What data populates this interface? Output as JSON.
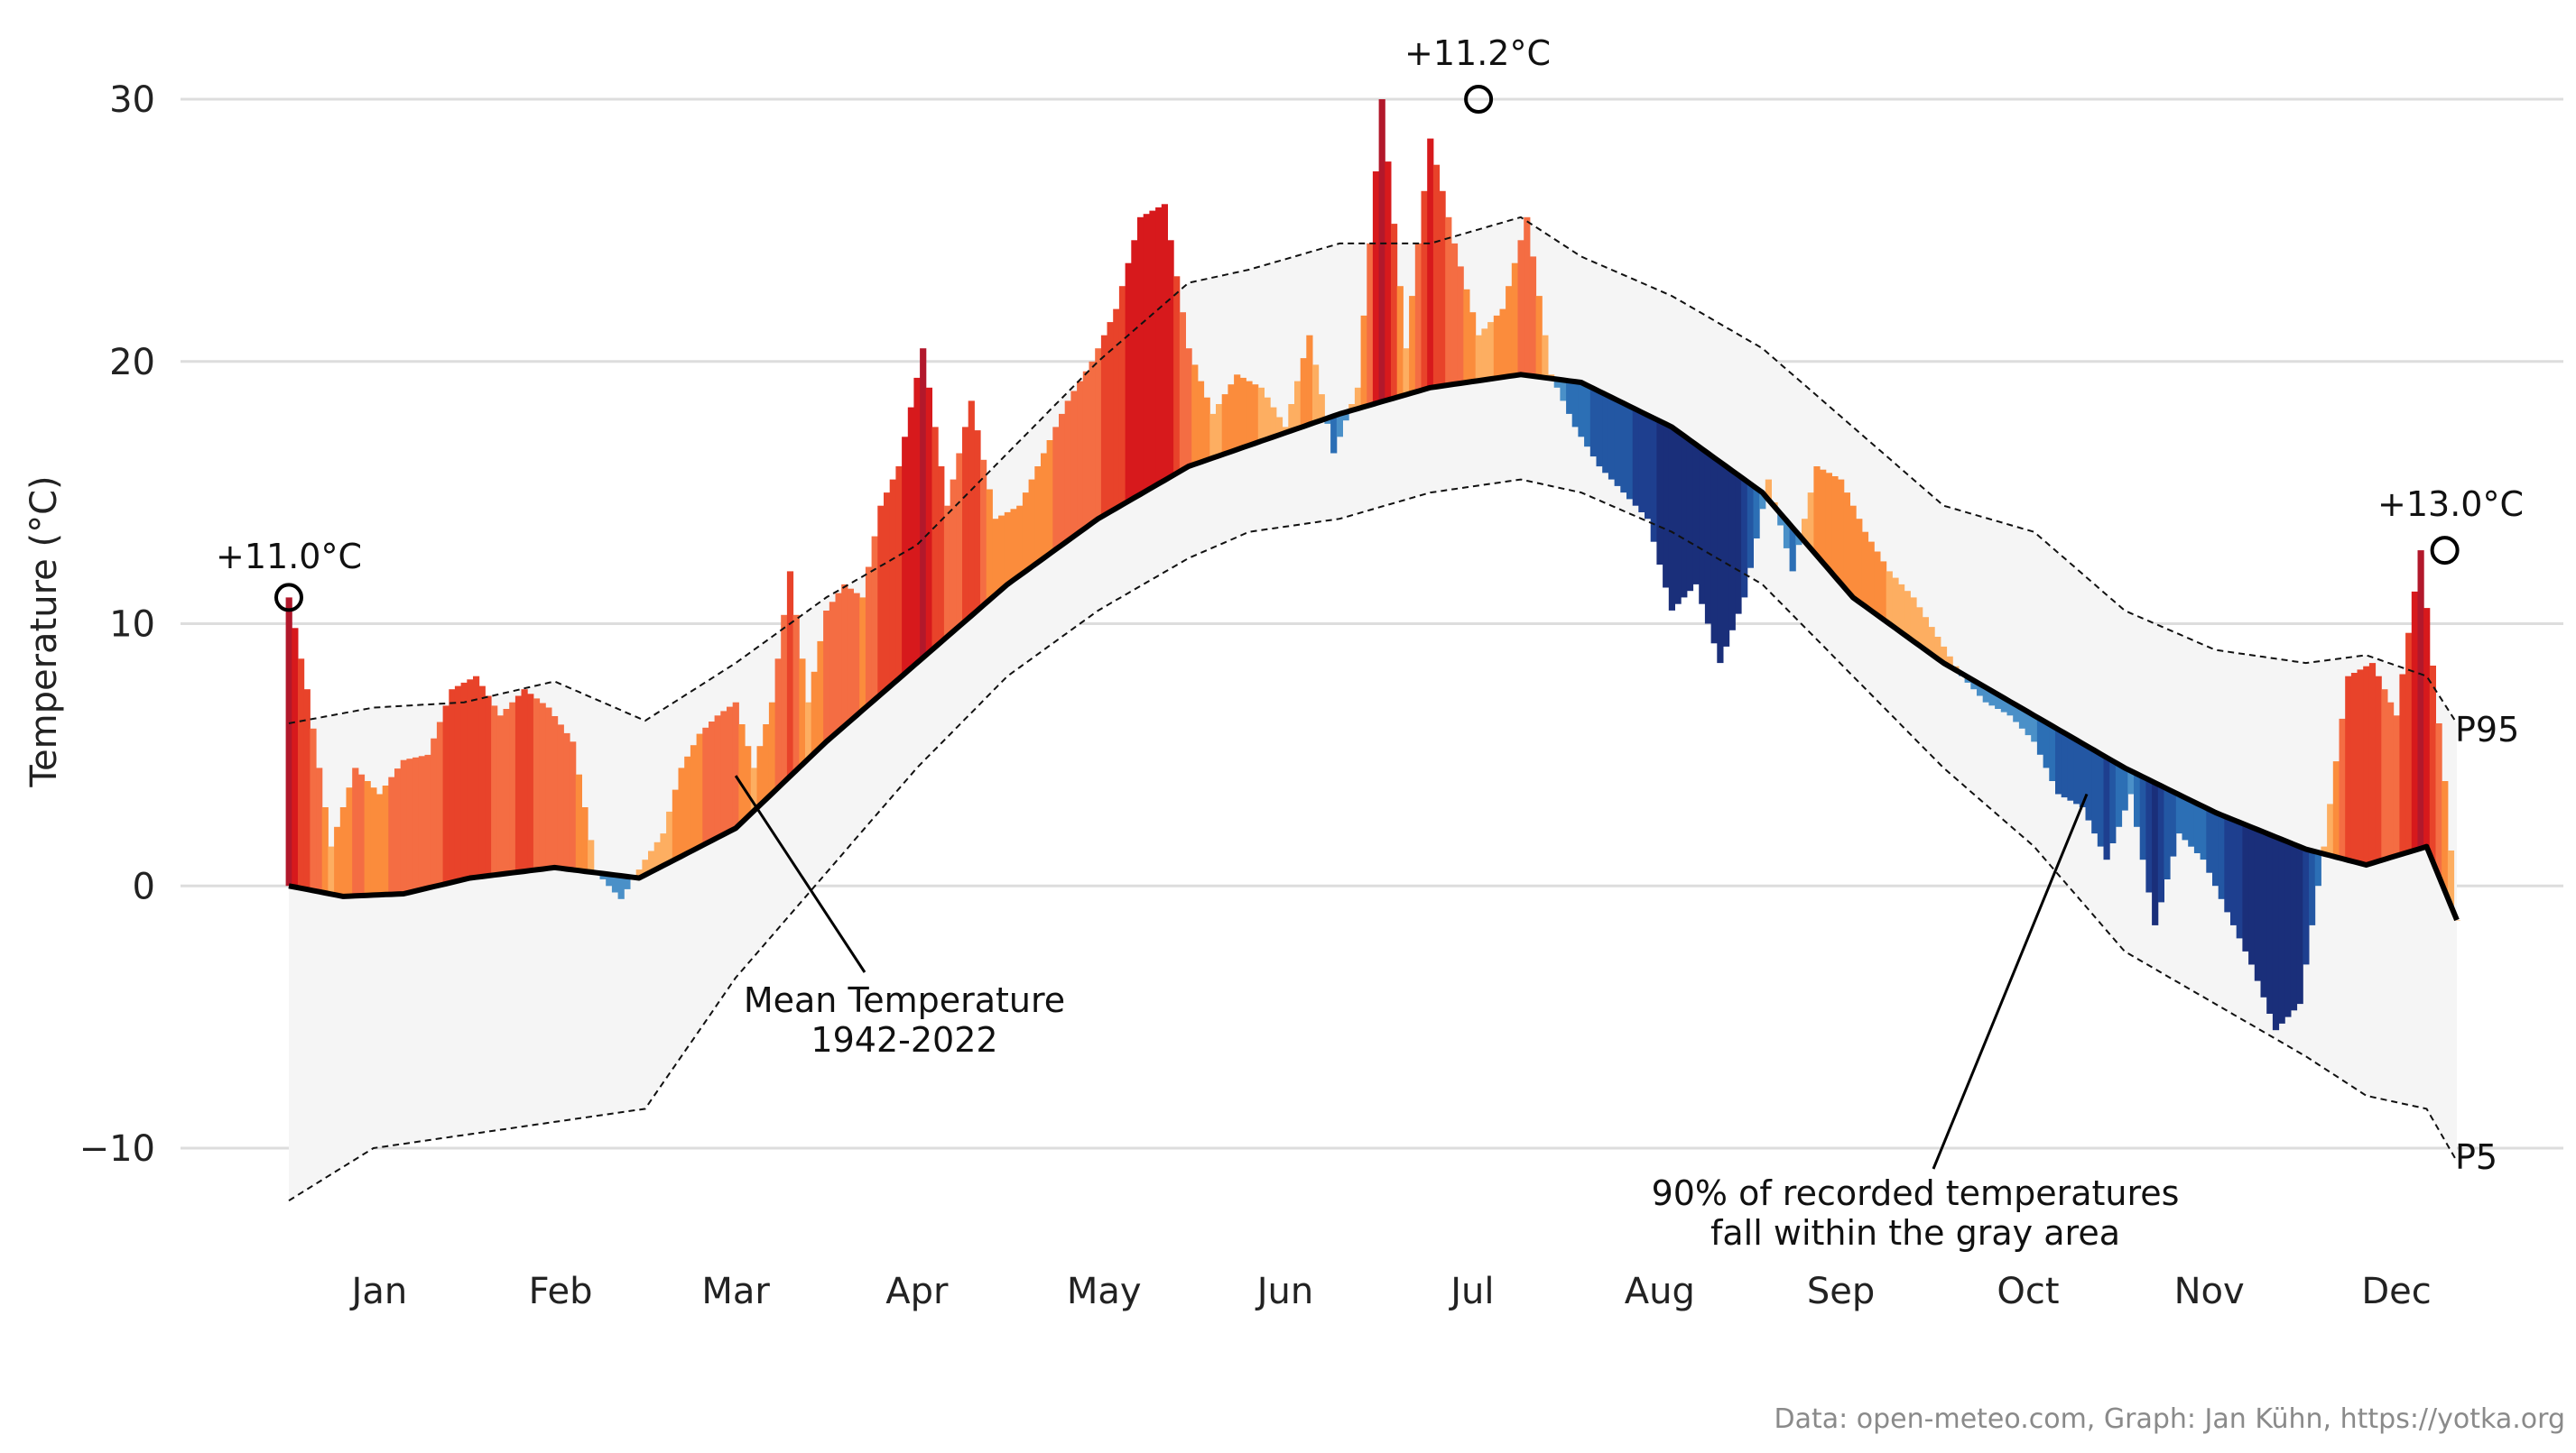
{
  "chart_data": {
    "type": "area",
    "title": "",
    "xlabel": "",
    "ylabel": "Temperature (°C)",
    "ylim": [
      -13,
      32
    ],
    "yticks": [
      30,
      20,
      10,
      0,
      -10
    ],
    "ytick_labels": [
      "30",
      "20",
      "10",
      "0",
      "−10"
    ],
    "grid": true,
    "month_labels": [
      "Jan",
      "Feb",
      "Mar",
      "Apr",
      "May",
      "Jun",
      "Jul",
      "Aug",
      "Sep",
      "Oct",
      "Nov",
      "Dec"
    ],
    "mean_temperature": {
      "x": [
        1,
        10,
        20,
        31,
        45,
        59,
        75,
        90,
        105,
        120,
        135,
        150,
        160,
        175,
        190,
        205,
        215,
        230,
        245,
        260,
        275,
        290,
        305,
        320,
        335,
        345,
        355,
        360
      ],
      "y": [
        0.0,
        -0.4,
        -0.3,
        0.3,
        0.7,
        0.3,
        2.2,
        5.5,
        8.5,
        11.5,
        14.0,
        16.0,
        16.8,
        18.0,
        19.0,
        19.5,
        19.2,
        17.5,
        15.0,
        11.0,
        8.5,
        6.5,
        4.5,
        2.8,
        1.4,
        0.8,
        1.5,
        -1.3
      ]
    },
    "percentile_95": {
      "label": "P95",
      "x": [
        1,
        15,
        30,
        45,
        60,
        75,
        90,
        105,
        120,
        135,
        150,
        160,
        175,
        190,
        205,
        215,
        230,
        245,
        260,
        275,
        290,
        305,
        320,
        335,
        345,
        355,
        360
      ],
      "y": [
        6.2,
        6.8,
        7.0,
        7.8,
        6.3,
        8.5,
        11.0,
        13.0,
        16.5,
        20.0,
        23.0,
        23.5,
        24.5,
        24.5,
        25.5,
        24.0,
        22.5,
        20.5,
        17.5,
        14.5,
        13.5,
        10.5,
        9.0,
        8.5,
        8.8,
        8.0,
        6.2
      ]
    },
    "percentile_5": {
      "label": "P5",
      "x": [
        1,
        15,
        30,
        45,
        60,
        75,
        90,
        105,
        120,
        135,
        150,
        160,
        175,
        190,
        205,
        215,
        230,
        245,
        260,
        275,
        290,
        305,
        320,
        335,
        345,
        355,
        360
      ],
      "y": [
        -12.0,
        -10.0,
        -9.5,
        -9.0,
        -8.5,
        -3.5,
        0.5,
        4.5,
        8.0,
        10.5,
        12.5,
        13.5,
        14.0,
        15.0,
        15.5,
        15.0,
        13.5,
        11.5,
        8.0,
        4.5,
        1.5,
        -2.5,
        -4.5,
        -6.5,
        -8.0,
        -8.5,
        -10.5
      ]
    },
    "daily_anomaly": {
      "x": [
        1,
        4,
        8,
        12,
        16,
        20,
        24,
        28,
        32,
        36,
        40,
        44,
        48,
        52,
        56,
        60,
        63,
        66,
        69,
        72,
        75,
        78,
        81,
        84,
        87,
        90,
        93,
        96,
        99,
        102,
        106,
        110,
        114,
        118,
        122,
        126,
        130,
        134,
        138,
        142,
        146,
        150,
        154,
        158,
        162,
        166,
        170,
        174,
        178,
        182,
        186,
        190,
        194,
        198,
        202,
        206,
        210,
        214,
        218,
        222,
        226,
        230,
        234,
        238,
        242,
        246,
        250,
        254,
        258,
        262,
        266,
        270,
        274,
        278,
        282,
        286,
        290,
        294,
        298,
        302,
        306,
        310,
        314,
        318,
        322,
        326,
        330,
        334,
        338,
        342,
        346,
        350,
        354,
        358,
        360
      ],
      "y": [
        11.0,
        7.5,
        1.5,
        4.5,
        3.5,
        4.8,
        5.0,
        7.5,
        8.0,
        6.5,
        7.5,
        6.8,
        5.5,
        0.5,
        -0.5,
        1.0,
        2.0,
        4.5,
        5.8,
        6.5,
        7.0,
        4.5,
        7.0,
        12.0,
        7.0,
        10.5,
        11.5,
        11.0,
        14.5,
        16.0,
        20.5,
        14.5,
        18.5,
        14.0,
        14.5,
        16.5,
        18.5,
        20.0,
        22.0,
        25.5,
        26.0,
        20.5,
        18.0,
        19.5,
        19.0,
        17.5,
        21.0,
        16.5,
        19.0,
        30.0,
        20.5,
        28.5,
        24.5,
        21.0,
        22.0,
        25.5,
        19.5,
        17.5,
        16.0,
        15.0,
        14.0,
        10.5,
        11.5,
        8.5,
        11.0,
        15.5,
        12.0,
        16.0,
        15.5,
        13.5,
        12.0,
        11.0,
        9.5,
        8.0,
        7.0,
        6.5,
        5.5,
        3.5,
        3.0,
        1.0,
        3.5,
        -1.5,
        2.0,
        1.0,
        -1.0,
        -3.0,
        -5.5,
        -4.5,
        1.5,
        8.0,
        8.5,
        6.5,
        12.8,
        4.0,
        -1.3
      ]
    },
    "annotations": [
      {
        "text": "+11.0°C",
        "x": 1,
        "y": 11.0
      },
      {
        "text": "+11.2°C",
        "x": 198,
        "y": 30.0
      },
      {
        "text": "+13.0°C",
        "x": 358,
        "y": 12.8
      },
      {
        "text": "Mean Temperature",
        "line2": "1942-2022"
      },
      {
        "text": "90% of recorded temperatures",
        "line2": "fall within the gray area"
      }
    ],
    "legend": "none",
    "caption": "Data: open-meteo.com, Graph: Jan Kühn, https://yotka.org"
  }
}
